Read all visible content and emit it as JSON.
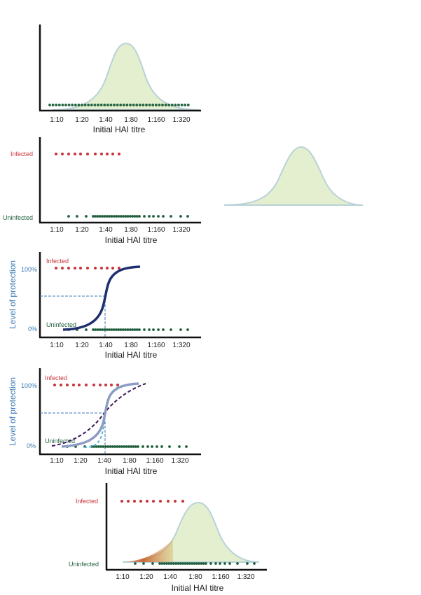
{
  "x_ticks": [
    "1:10",
    "1:20",
    "1:40",
    "1:80",
    "1:160",
    "1:320"
  ],
  "x_label": "Initial HAI titre",
  "infected_label": "Infected",
  "uninfected_label": "Uninfected",
  "y_label": "Level of protection",
  "pct_100": "100%",
  "pct_0": "0%",
  "colors": {
    "axis": "#111111",
    "infected": "#c8323a",
    "uninfected": "#1f5f3d",
    "bell_fill": "#e3efcf",
    "bell_stroke": "#b9d2d7",
    "curve_dark": "#1f2e6e",
    "curve_light": "#8d9cc3",
    "dashed_purple": "#3a1a5a",
    "dashed_blue": "#3b7bb5"
  }
}
